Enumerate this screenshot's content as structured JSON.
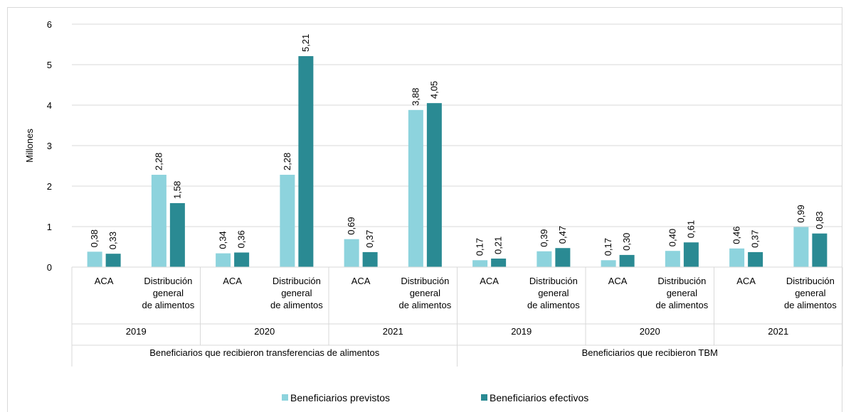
{
  "chart_data": {
    "type": "bar",
    "title": "",
    "ylabel": "Millones",
    "xlabel": "",
    "ylim": [
      0,
      6
    ],
    "yticks": [
      0,
      1,
      2,
      3,
      4,
      5,
      6
    ],
    "grid": true,
    "legend_position": "bottom",
    "groups": [
      {
        "label": "Beneficiarios que recibieron transferencias de alimentos",
        "years": [
          "2019",
          "2020",
          "2021"
        ]
      },
      {
        "label": "Beneficiarios que recibieron TBM",
        "years": [
          "2019",
          "2020",
          "2021"
        ]
      }
    ],
    "categories": [
      {
        "label": [
          "ACA"
        ],
        "year": "2019",
        "group": 0
      },
      {
        "label": [
          "Distribución",
          "general",
          "de alimentos"
        ],
        "year": "2019",
        "group": 0
      },
      {
        "label": [
          "ACA"
        ],
        "year": "2020",
        "group": 0
      },
      {
        "label": [
          "Distribución",
          "general",
          "de alimentos"
        ],
        "year": "2020",
        "group": 0
      },
      {
        "label": [
          "ACA"
        ],
        "year": "2021",
        "group": 0
      },
      {
        "label": [
          "Distribución",
          "general",
          "de alimentos"
        ],
        "year": "2021",
        "group": 0
      },
      {
        "label": [
          "ACA"
        ],
        "year": "2019",
        "group": 1
      },
      {
        "label": [
          "Distribución",
          "general",
          "de alimentos"
        ],
        "year": "2019",
        "group": 1
      },
      {
        "label": [
          "ACA"
        ],
        "year": "2020",
        "group": 1
      },
      {
        "label": [
          "Distribución",
          "general",
          "de alimentos"
        ],
        "year": "2020",
        "group": 1
      },
      {
        "label": [
          "ACA"
        ],
        "year": "2021",
        "group": 1
      },
      {
        "label": [
          "Distribución",
          "general",
          "de alimentos"
        ],
        "year": "2021",
        "group": 1
      }
    ],
    "series": [
      {
        "name": "Beneficiarios previstos",
        "color": "#8dd3dd",
        "values": [
          0.38,
          2.28,
          0.34,
          2.28,
          0.69,
          3.88,
          0.17,
          0.39,
          0.17,
          0.4,
          0.46,
          0.99
        ],
        "labels": [
          "0,38",
          "2,28",
          "0,34",
          "2,28",
          "0,69",
          "3,88",
          "0,17",
          "0,39",
          "0,17",
          "0,40",
          "0,46",
          "0,99"
        ]
      },
      {
        "name": "Beneficiarios efectivos",
        "color": "#2a8a93",
        "values": [
          0.33,
          1.58,
          0.36,
          5.21,
          0.37,
          4.05,
          0.21,
          0.47,
          0.3,
          0.61,
          0.37,
          0.83
        ],
        "labels": [
          "0,33",
          "1,58",
          "0,36",
          "5,21",
          "0,37",
          "4,05",
          "0,21",
          "0,47",
          "0,30",
          "0,61",
          "0,37",
          "0,83"
        ]
      }
    ]
  }
}
